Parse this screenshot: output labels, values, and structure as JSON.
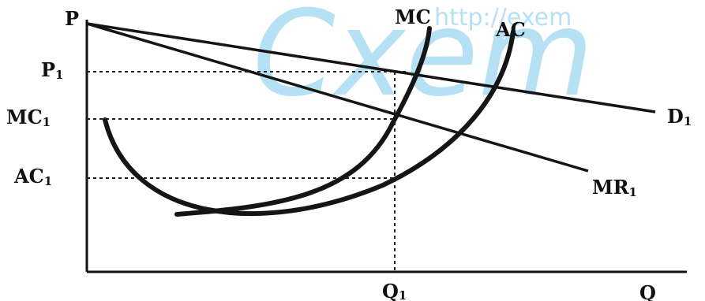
{
  "labels": {
    "price_axis": "P",
    "quantity_axis": "Q",
    "p1": "P",
    "p1_sub": "1",
    "mc1": "MC",
    "mc1_sub": "1",
    "ac1": "AC",
    "ac1_sub": "1",
    "q1": "Q",
    "q1_sub": "1",
    "mc_curve": "MC",
    "ac_curve": "AC",
    "demand": "D",
    "demand_sub": "1",
    "mr": "MR",
    "mr_sub": "1"
  },
  "watermark": {
    "large_text": "Cxem",
    "small_text": "http://exem",
    "color": "#7cc7ea"
  }
}
